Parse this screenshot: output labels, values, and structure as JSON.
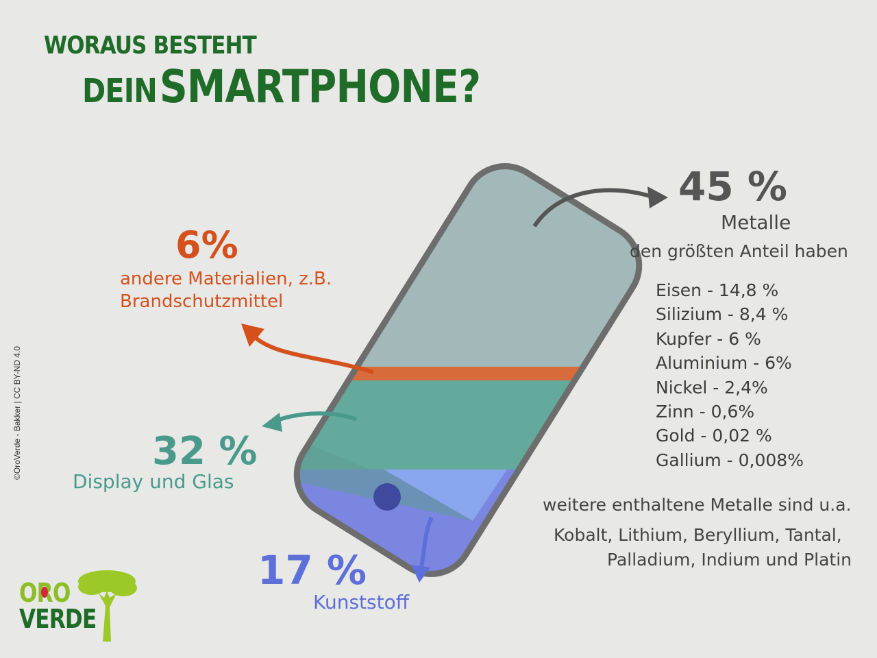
{
  "title": {
    "line1": "WORAUS BESTEHT",
    "line2_small": "DEIN",
    "line2_big": "SMARTPHONE?"
  },
  "segments": {
    "metals": {
      "percent": "45 %",
      "label": "Metalle",
      "note": "den größten Anteil haben",
      "color": "#555555"
    },
    "other": {
      "percent": "6%",
      "label_line1": "andere Materialien, z.B.",
      "label_line2": "Brandschutzmittel",
      "color": "#d4501c"
    },
    "display": {
      "percent": "32 %",
      "label": "Display und Glas",
      "color": "#4a9a8c"
    },
    "plastic": {
      "percent": "17 %",
      "label": "Kunststoff",
      "color": "#5d6fd8"
    }
  },
  "metals_list": [
    "Eisen - 14,8 %",
    "Silizium - 8,4 %",
    "Kupfer - 6 %",
    "Aluminium - 6%",
    "Nickel - 2,4%",
    "Zinn - 0,6%",
    "Gold - 0,02 %",
    "Gallium - 0,008%"
  ],
  "further": {
    "heading": "weitere enthaltene Metalle sind u.a.",
    "line1": "Kobalt, Lithium, Beryllium, Tantal,",
    "line2": "Palladium, Indium und Platin"
  },
  "logo": {
    "line1": "ORO",
    "line2": "VERDE",
    "green": "#8cbf26",
    "dark": "#1f6b28",
    "accent": "#d4263a"
  },
  "credit": "©OroVerde - Bakker | CC BY-ND 4.0"
}
